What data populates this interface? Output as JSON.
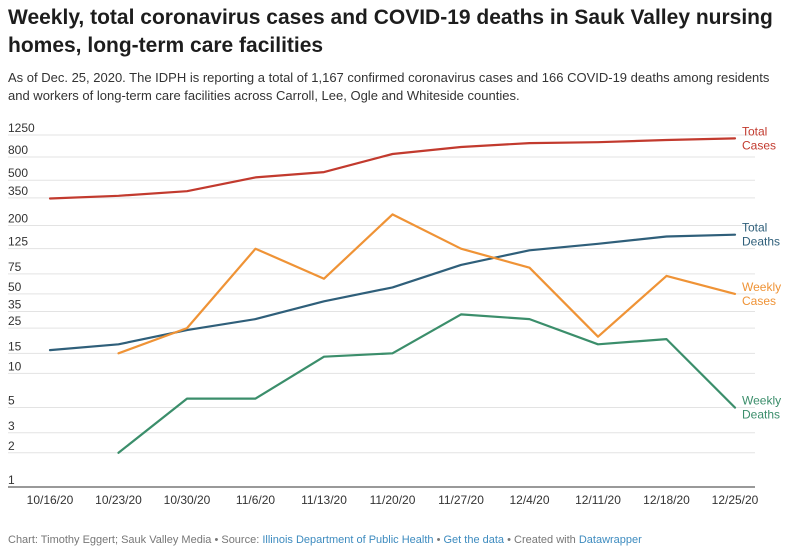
{
  "title": "Weekly, total coronavirus cases and COVID-19 deaths in Sauk Valley nursing homes, long-term care facilities",
  "subtitle": "As of Dec. 25, 2020. The IDPH is reporting a total of 1,167 confirmed coronavirus cases and 166 COVID-19 deaths among residents and workers of long-term care facilities across Carroll, Lee, Ogle and Whiteside counties.",
  "chart_data": {
    "type": "line",
    "y_scale": "log",
    "ylim": [
      1,
      1250
    ],
    "y_ticks": [
      1,
      2,
      3,
      5,
      10,
      15,
      25,
      35,
      50,
      75,
      125,
      200,
      350,
      500,
      800,
      1250
    ],
    "x": [
      "10/16/20",
      "10/23/20",
      "10/30/20",
      "11/6/20",
      "11/13/20",
      "11/20/20",
      "11/27/20",
      "12/4/20",
      "12/11/20",
      "12/18/20",
      "12/25/20"
    ],
    "grid": "horizontal",
    "legend": "labels at line ends (right)",
    "series": [
      {
        "name": "Total Cases",
        "color": "#c23a2e",
        "label_lines": [
          "Total",
          "Cases"
        ],
        "values": [
          345,
          365,
          400,
          530,
          590,
          850,
          980,
          1060,
          1080,
          1130,
          1167
        ]
      },
      {
        "name": "Total Deaths",
        "color": "#2f5f7a",
        "label_lines": [
          "Total",
          "Deaths"
        ],
        "values": [
          16,
          18,
          24,
          30,
          43,
          57,
          90,
          121,
          138,
          160,
          166
        ]
      },
      {
        "name": "Weekly Cases",
        "color": "#ef9336",
        "label_lines": [
          "Weekly",
          "Cases"
        ],
        "values": [
          null,
          15,
          25,
          125,
          68,
          250,
          125,
          85,
          21,
          72,
          50
        ]
      },
      {
        "name": "Weekly Deaths",
        "color": "#3b8e6b",
        "label_lines": [
          "Weekly",
          "Deaths"
        ],
        "values": [
          null,
          2,
          6,
          6,
          14,
          15,
          33,
          30,
          18,
          20,
          5
        ]
      }
    ]
  },
  "footer": {
    "prefix": "Chart: Timothy Eggert; Sauk Valley Media • Source: ",
    "source_link": "Illinois Department of Public Health",
    "sep1": " • ",
    "data_link": "Get the data",
    "sep2": " • Created with ",
    "tool_link": "Datawrapper"
  }
}
